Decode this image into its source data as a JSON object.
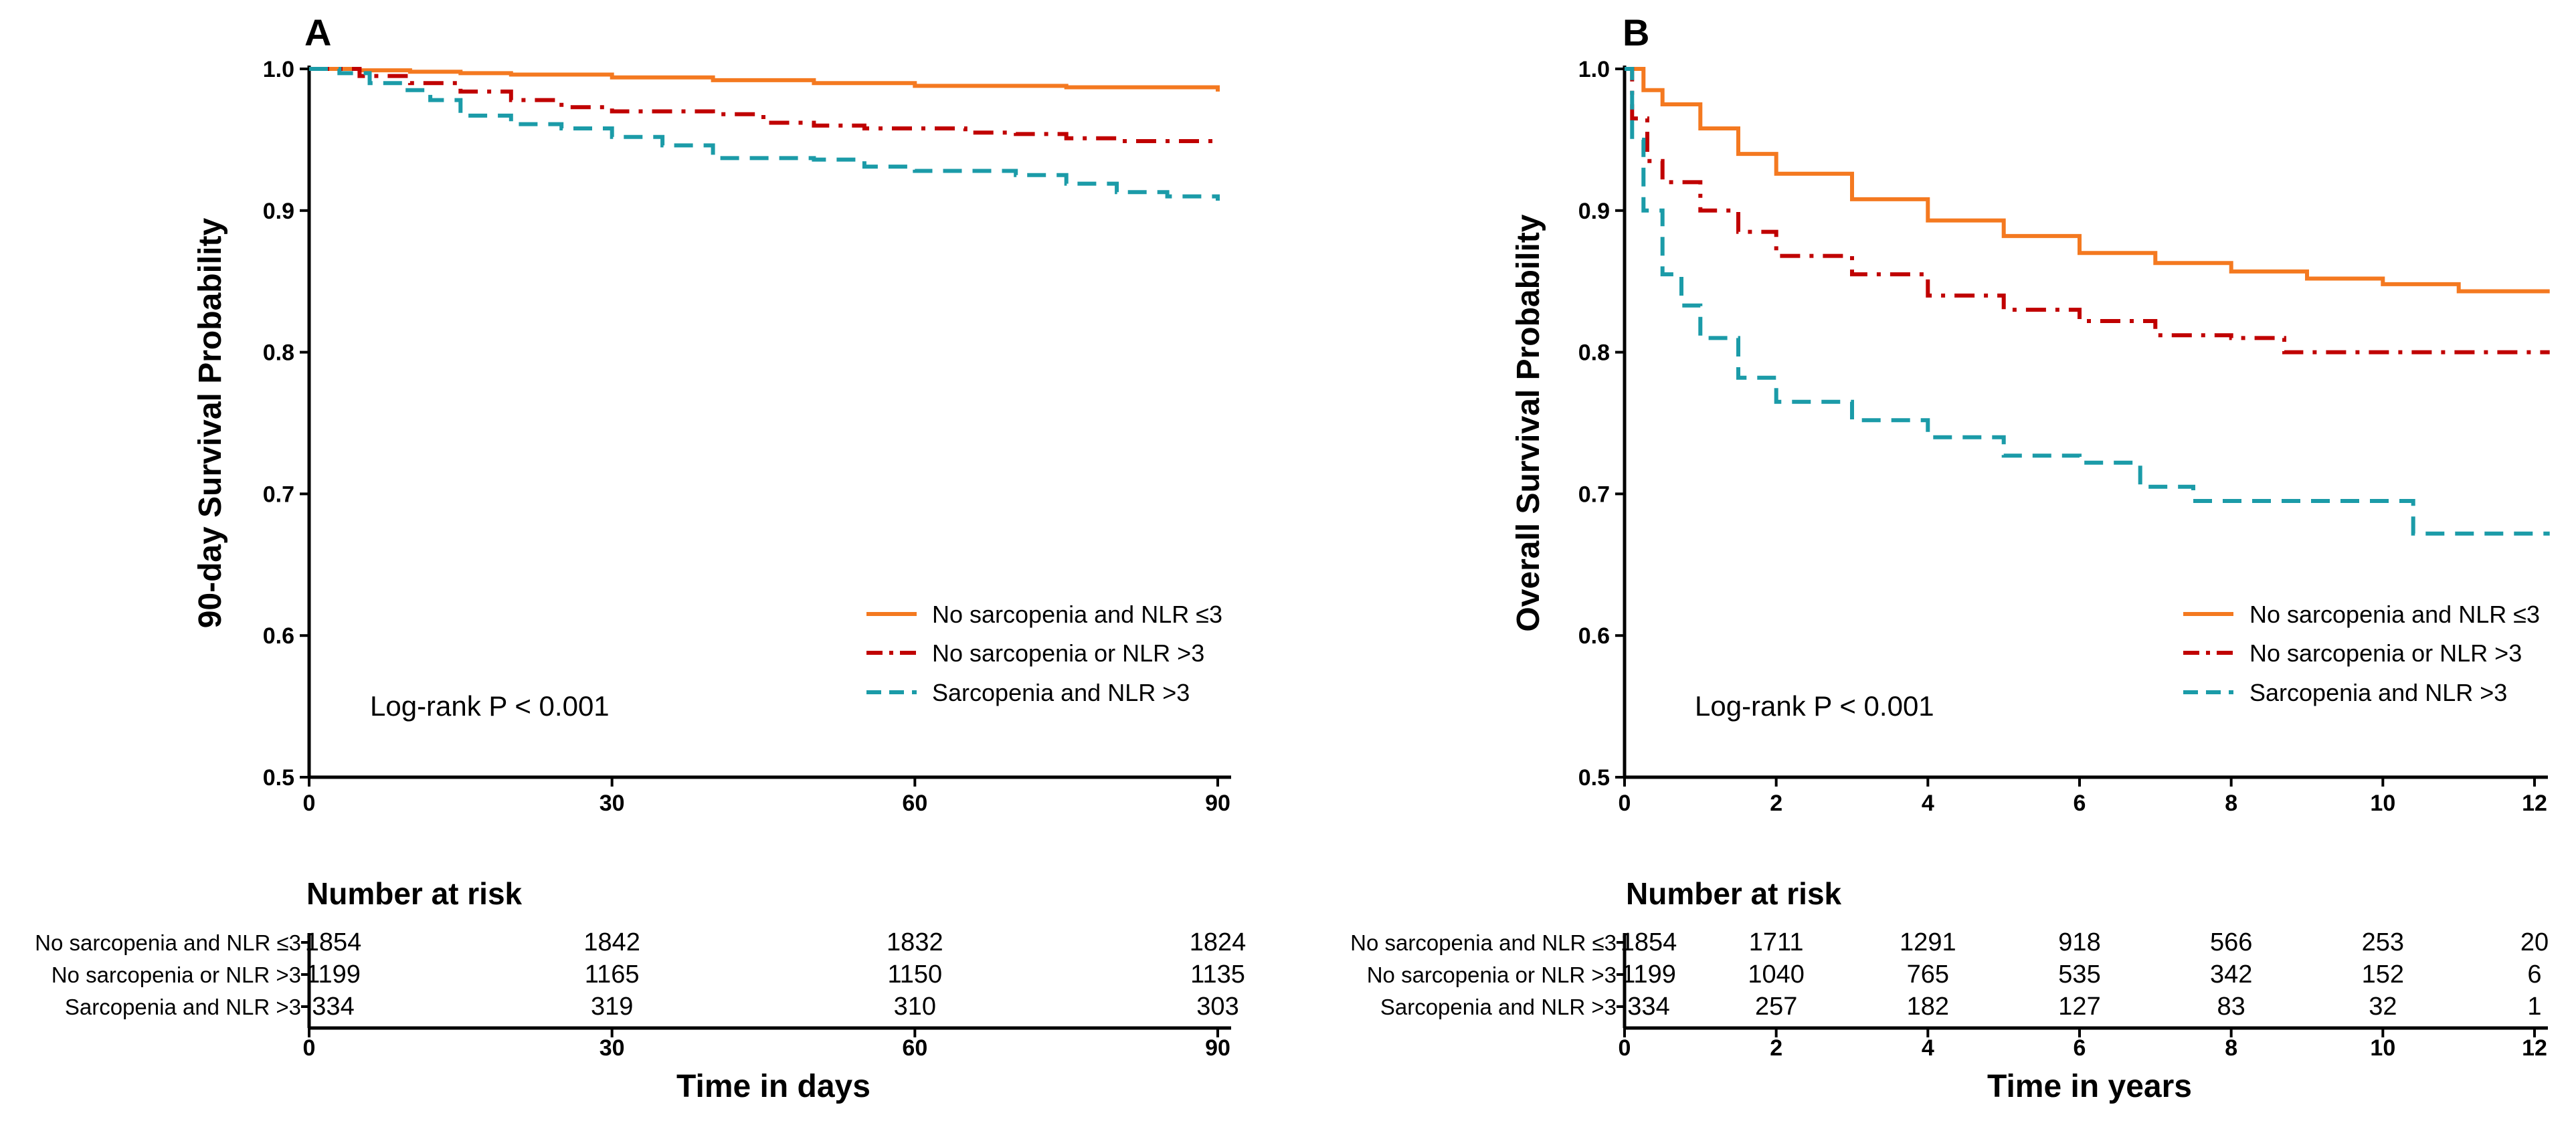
{
  "chart_data": [
    {
      "panel": "A",
      "type": "line",
      "subtype": "kaplan-meier",
      "ylabel": "90-day Survival Probability",
      "xlabel": "Time in days",
      "ylim": [
        0.5,
        1.0
      ],
      "xlim": [
        0,
        90
      ],
      "yticks": [
        "0.5",
        "0.6",
        "0.7",
        "0.8",
        "0.9",
        "1.0"
      ],
      "xticks": [
        "0",
        "30",
        "60",
        "90"
      ],
      "annotation": "Log-rank P < 0.001",
      "legend_position": "bottom-right",
      "series": [
        {
          "name": "No sarcopenia and NLR ≤3",
          "color": "#F47920",
          "style": "solid",
          "x": [
            0,
            5,
            10,
            15,
            20,
            30,
            40,
            50,
            60,
            75,
            90
          ],
          "y": [
            1.0,
            0.999,
            0.998,
            0.997,
            0.996,
            0.994,
            0.992,
            0.99,
            0.988,
            0.987,
            0.984
          ]
        },
        {
          "name": "No sarcopenia or NLR >3",
          "color": "#C00000",
          "style": "dashdot",
          "x": [
            0,
            5,
            10,
            15,
            20,
            25,
            30,
            40,
            45,
            50,
            55,
            60,
            65,
            70,
            75,
            80,
            90
          ],
          "y": [
            1.0,
            0.995,
            0.99,
            0.984,
            0.978,
            0.973,
            0.97,
            0.968,
            0.962,
            0.96,
            0.958,
            0.958,
            0.955,
            0.954,
            0.951,
            0.949,
            0.947
          ]
        },
        {
          "name": "Sarcopenia and NLR >3",
          "color": "#1B9BA8",
          "style": "dashed",
          "x": [
            0,
            3,
            6,
            9,
            12,
            15,
            20,
            25,
            30,
            35,
            40,
            45,
            50,
            55,
            60,
            70,
            75,
            80,
            85,
            90
          ],
          "y": [
            1.0,
            0.997,
            0.99,
            0.985,
            0.978,
            0.967,
            0.961,
            0.958,
            0.952,
            0.946,
            0.937,
            0.937,
            0.936,
            0.931,
            0.928,
            0.925,
            0.919,
            0.913,
            0.91,
            0.907
          ]
        }
      ],
      "risk_table": {
        "title": "Number at risk",
        "times": [
          "0",
          "30",
          "60",
          "90"
        ],
        "rows": [
          {
            "label": "No sarcopenia and NLR ≤3",
            "values": [
              "1854",
              "1842",
              "1832",
              "1824"
            ]
          },
          {
            "label": "No sarcopenia or NLR >3",
            "values": [
              "1199",
              "1165",
              "1150",
              "1135"
            ]
          },
          {
            "label": "Sarcopenia and NLR >3",
            "values": [
              "334",
              "319",
              "310",
              "303"
            ]
          }
        ]
      }
    },
    {
      "panel": "B",
      "type": "line",
      "subtype": "kaplan-meier",
      "ylabel": "Overall Survival Probability",
      "xlabel": "Time in years",
      "ylim": [
        0.5,
        1.0
      ],
      "xlim": [
        0,
        12
      ],
      "yticks": [
        "0.5",
        "0.6",
        "0.7",
        "0.8",
        "0.9",
        "1.0"
      ],
      "xticks": [
        "0",
        "2",
        "4",
        "6",
        "8",
        "10",
        "12"
      ],
      "annotation": "Log-rank P < 0.001",
      "legend_position": "bottom-right",
      "series": [
        {
          "name": "No sarcopenia and NLR ≤3",
          "color": "#F47920",
          "style": "solid",
          "x": [
            0,
            0.25,
            0.5,
            1,
            1.5,
            2,
            3,
            4,
            5,
            6,
            7,
            8,
            9,
            10,
            11,
            12.2
          ],
          "y": [
            1.0,
            0.985,
            0.975,
            0.958,
            0.94,
            0.926,
            0.908,
            0.893,
            0.882,
            0.87,
            0.863,
            0.857,
            0.852,
            0.848,
            0.843,
            0.843
          ]
        },
        {
          "name": "No sarcopenia or NLR >3",
          "color": "#C00000",
          "style": "dashdot",
          "x": [
            0,
            0.1,
            0.3,
            0.5,
            1,
            1.5,
            2,
            3,
            4,
            5,
            6,
            7,
            8,
            8.7,
            9,
            10,
            12.2
          ],
          "y": [
            1.0,
            0.965,
            0.935,
            0.92,
            0.9,
            0.885,
            0.868,
            0.855,
            0.84,
            0.83,
            0.822,
            0.812,
            0.81,
            0.8,
            0.8,
            0.8,
            0.8
          ]
        },
        {
          "name": "Sarcopenia and NLR >3",
          "color": "#1B9BA8",
          "style": "dashed",
          "x": [
            0,
            0.1,
            0.25,
            0.5,
            0.75,
            1,
            1.5,
            2,
            3,
            4,
            5,
            6,
            6.6,
            6.8,
            7.5,
            8,
            10.3,
            10.4,
            12.2
          ],
          "y": [
            1.0,
            0.95,
            0.9,
            0.855,
            0.833,
            0.81,
            0.782,
            0.765,
            0.752,
            0.74,
            0.727,
            0.722,
            0.722,
            0.705,
            0.695,
            0.695,
            0.695,
            0.672,
            0.672
          ]
        }
      ],
      "risk_table": {
        "title": "Number at risk",
        "times": [
          "0",
          "2",
          "4",
          "6",
          "8",
          "10",
          "12"
        ],
        "rows": [
          {
            "label": "No sarcopenia and NLR ≤3",
            "values": [
              "1854",
              "1711",
              "1291",
              "918",
              "566",
              "253",
              "20"
            ]
          },
          {
            "label": "No sarcopenia or NLR >3",
            "values": [
              "1199",
              "1040",
              "765",
              "535",
              "342",
              "152",
              "6"
            ]
          },
          {
            "label": "Sarcopenia and NLR >3",
            "values": [
              "334",
              "257",
              "182",
              "127",
              "83",
              "32",
              "1"
            ]
          }
        ]
      }
    }
  ]
}
